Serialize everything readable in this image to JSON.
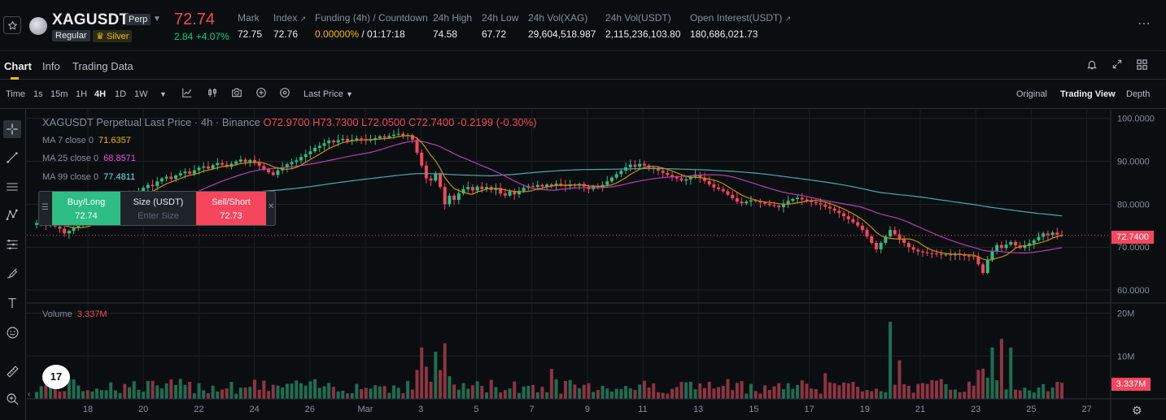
{
  "header": {
    "symbol": "XAGUSDT",
    "contract_tag": "Perp",
    "market_tag": "Regular",
    "category_tag": "Silver",
    "last_price": "72.74",
    "change": "2.84 +4.07%",
    "stats": [
      {
        "label": "Mark",
        "value": "72.75",
        "value_color": "#eaecef"
      },
      {
        "label": "Index",
        "value": "72.76",
        "value_color": "#eaecef"
      },
      {
        "label": "Funding (4h) / Countdown",
        "value": "0.00000%",
        "value2": " / 01:17:18",
        "value_color": "#f0b90b"
      },
      {
        "label": "24h High",
        "value": "74.58",
        "value_color": "#eaecef"
      },
      {
        "label": "24h Low",
        "value": "67.72",
        "value_color": "#eaecef"
      },
      {
        "label": "24h Vol(XAG)",
        "value": "29,604,518.987",
        "value_color": "#eaecef"
      },
      {
        "label": "24h Vol(USDT)",
        "value": "2,115,236,103.80",
        "value_color": "#eaecef"
      },
      {
        "label": "Open Interest(USDT)",
        "value": "180,686,021.73",
        "value_color": "#eaecef"
      }
    ],
    "more_icon": "more-icon"
  },
  "tabs": [
    "Chart",
    "Info",
    "Trading Data"
  ],
  "toolbar": {
    "time_label": "Time",
    "intervals": [
      "1s",
      "15m",
      "1H",
      "4H",
      "1D",
      "1W"
    ],
    "active_interval": "4H",
    "price_type": "Last Price",
    "views": [
      "Original",
      "Trading View",
      "Depth"
    ],
    "active_view": "Trading View"
  },
  "legend": {
    "title": "XAGUSDT Perpetual Last Price · 4h · Binance",
    "ohlc": "O72.9700 H73.7300 L72.0500 C72.7400 -0.2199 (-0.30%)",
    "ma": [
      {
        "label": "MA 7 close 0",
        "value": "71.6357",
        "color": "#f0b90b"
      },
      {
        "label": "MA 25 close 0",
        "value": "68.8571",
        "color": "#e855e4"
      },
      {
        "label": "MA 99 close 0",
        "value": "77.4811",
        "color": "#6fe3e4"
      }
    ]
  },
  "order": {
    "buy_label": "Buy/Long",
    "buy_price": "72.74",
    "size_label": "Size (USDT)",
    "size_placeholder": "Enter Size",
    "sell_label": "Sell/Short",
    "sell_price": "72.73"
  },
  "volume": {
    "label": "Volume",
    "value": "3.337M"
  },
  "price_axis": [
    "100.0000",
    "90.0000",
    "80.0000",
    "70.0000",
    "60.0000"
  ],
  "volume_axis": [
    "20M",
    "10M"
  ],
  "current_price_tag": "72.7400",
  "current_volume_tag": "3.337M",
  "date_axis": [
    "18",
    "20",
    "22",
    "24",
    "26",
    "Mar",
    "3",
    "5",
    "7",
    "9",
    "11",
    "13",
    "15",
    "17",
    "19",
    "21",
    "23",
    "25",
    "27"
  ],
  "logo_text": "17",
  "colors": {
    "up": "#2ebd85",
    "down": "#f6465d",
    "accent": "#f0b90b"
  },
  "chart_data": {
    "type": "candlestick",
    "price_range": [
      57,
      102
    ],
    "series_closes": [
      75.6,
      76.1,
      75.2,
      75.9,
      74.8,
      74.3,
      73.2,
      73.8,
      74.5,
      75.2,
      76.3,
      76.0,
      76.8,
      77.5,
      77.9,
      78.4,
      79.2,
      80.1,
      81.0,
      80.7,
      81.9,
      82.4,
      83.1,
      83.8,
      84.5,
      84.2,
      85.3,
      86.0,
      86.4,
      85.9,
      86.7,
      87.2,
      87.6,
      87.1,
      87.9,
      88.5,
      88.8,
      88.3,
      89.1,
      89.6,
      89.2,
      88.7,
      89.4,
      89.9,
      90.4,
      89.8,
      90.3,
      89.6,
      88.9,
      88.1,
      87.4,
      86.8,
      87.9,
      88.6,
      89.3,
      89.8,
      90.2,
      91.0,
      91.6,
      92.3,
      93.1,
      93.6,
      94.2,
      94.8,
      94.4,
      94.9,
      95.2,
      94.7,
      95.0,
      95.3,
      95.1,
      94.8,
      95.0,
      95.4,
      95.8,
      95.5,
      95.9,
      96.2,
      96.4,
      95.9,
      96.1,
      95.0,
      92.0,
      89.0,
      86.0,
      85.5,
      87.0,
      84.0,
      80.0,
      82.0,
      81.0,
      82.5,
      83.5,
      84.0,
      83.2,
      84.1,
      83.5,
      84.0,
      83.3,
      83.8,
      82.5,
      82.0,
      83.0,
      82.3,
      83.1,
      83.8,
      84.2,
      84.0,
      84.5,
      84.1,
      84.6,
      84.3,
      84.8,
      84.5,
      84.2,
      84.6,
      84.3,
      84.7,
      84.1,
      83.5,
      84.2,
      83.8,
      84.5,
      85.3,
      86.2,
      87.0,
      87.8,
      88.6,
      89.2,
      88.7,
      89.4,
      89.0,
      88.5,
      88.2,
      87.8,
      87.3,
      86.8,
      86.4,
      86.0,
      85.5,
      85.8,
      86.4,
      86.9,
      86.2,
      85.4,
      84.6,
      83.9,
      83.5,
      83.0,
      82.2,
      81.4,
      80.6,
      80.2,
      80.6,
      80.9,
      80.7,
      80.4,
      80.1,
      79.8,
      79.6,
      79.3,
      80.1,
      80.8,
      81.2,
      81.5,
      81.1,
      80.8,
      80.5,
      80.2,
      79.9,
      79.4,
      79.0,
      78.5,
      77.9,
      77.2,
      76.5,
      75.8,
      75.0,
      74.0,
      72.5,
      71.0,
      69.5,
      71.0,
      72.5,
      74.0,
      73.0,
      72.0,
      71.0,
      70.0,
      69.4,
      69.0,
      68.8,
      68.6,
      68.5,
      68.4,
      68.2,
      68.3,
      68.1,
      68.5,
      68.2,
      68.0,
      67.9,
      67.8,
      66.0,
      64.0,
      67.0,
      69.0,
      70.5,
      69.8,
      70.6,
      71.2,
      70.4,
      69.8,
      70.3,
      70.9,
      71.6,
      72.4,
      73.2,
      72.8,
      73.4,
      72.9,
      72.74
    ],
    "ma7_last": 71.6357,
    "ma25_last": 68.8571,
    "ma99_last": 77.4811
  }
}
